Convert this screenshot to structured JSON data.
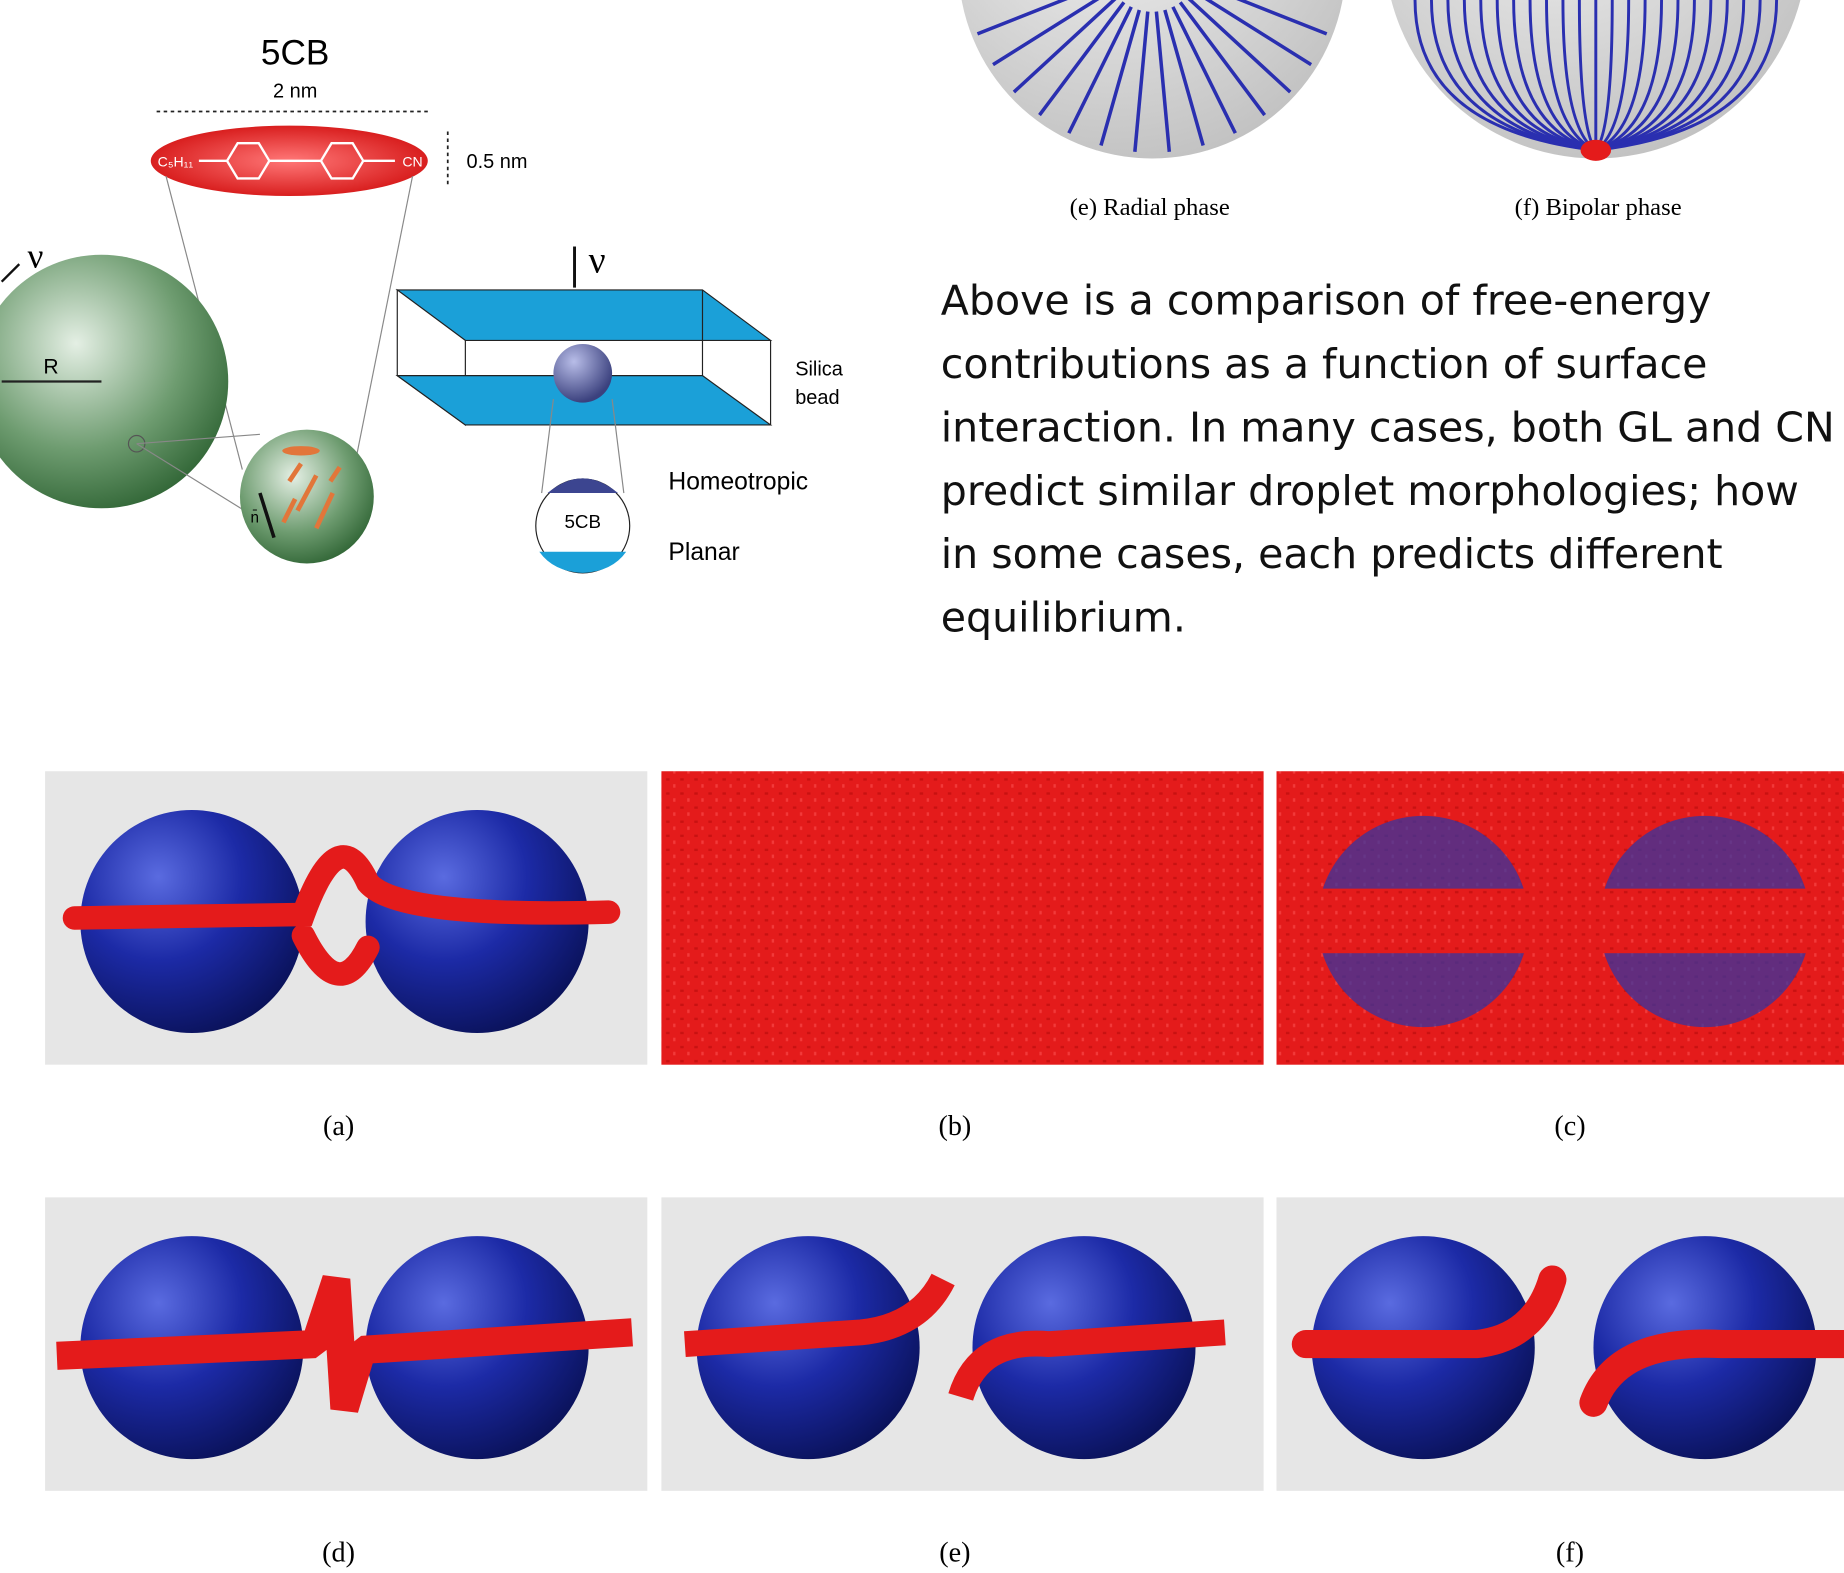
{
  "molecule": {
    "name": "5CB",
    "length": "2 nm",
    "width": "0.5 nm",
    "left_group": "C₅H₁₁",
    "right_group": "CN",
    "director": "ν",
    "radius": "R",
    "normal": "n̄"
  },
  "cell": {
    "director": "ν",
    "bead_label": [
      "Silica",
      "bead"
    ],
    "inset_label": "5CB",
    "top_anchoring": "Homeotropic",
    "bottom_anchoring": "Planar"
  },
  "phases": [
    "(e) Radial phase",
    "(f) Bipolar phase"
  ],
  "paragraph": [
    "Above is a comparison of free-energy",
    "contributions as a function of surface",
    "interaction. In many cases, both GL and CN",
    "predict similar droplet morphologies; how",
    "in some cases, each predicts different",
    "equilibrium."
  ],
  "panels": [
    "(a)",
    "(b)",
    "(c)",
    "(d)",
    "(e)",
    "(f)"
  ]
}
